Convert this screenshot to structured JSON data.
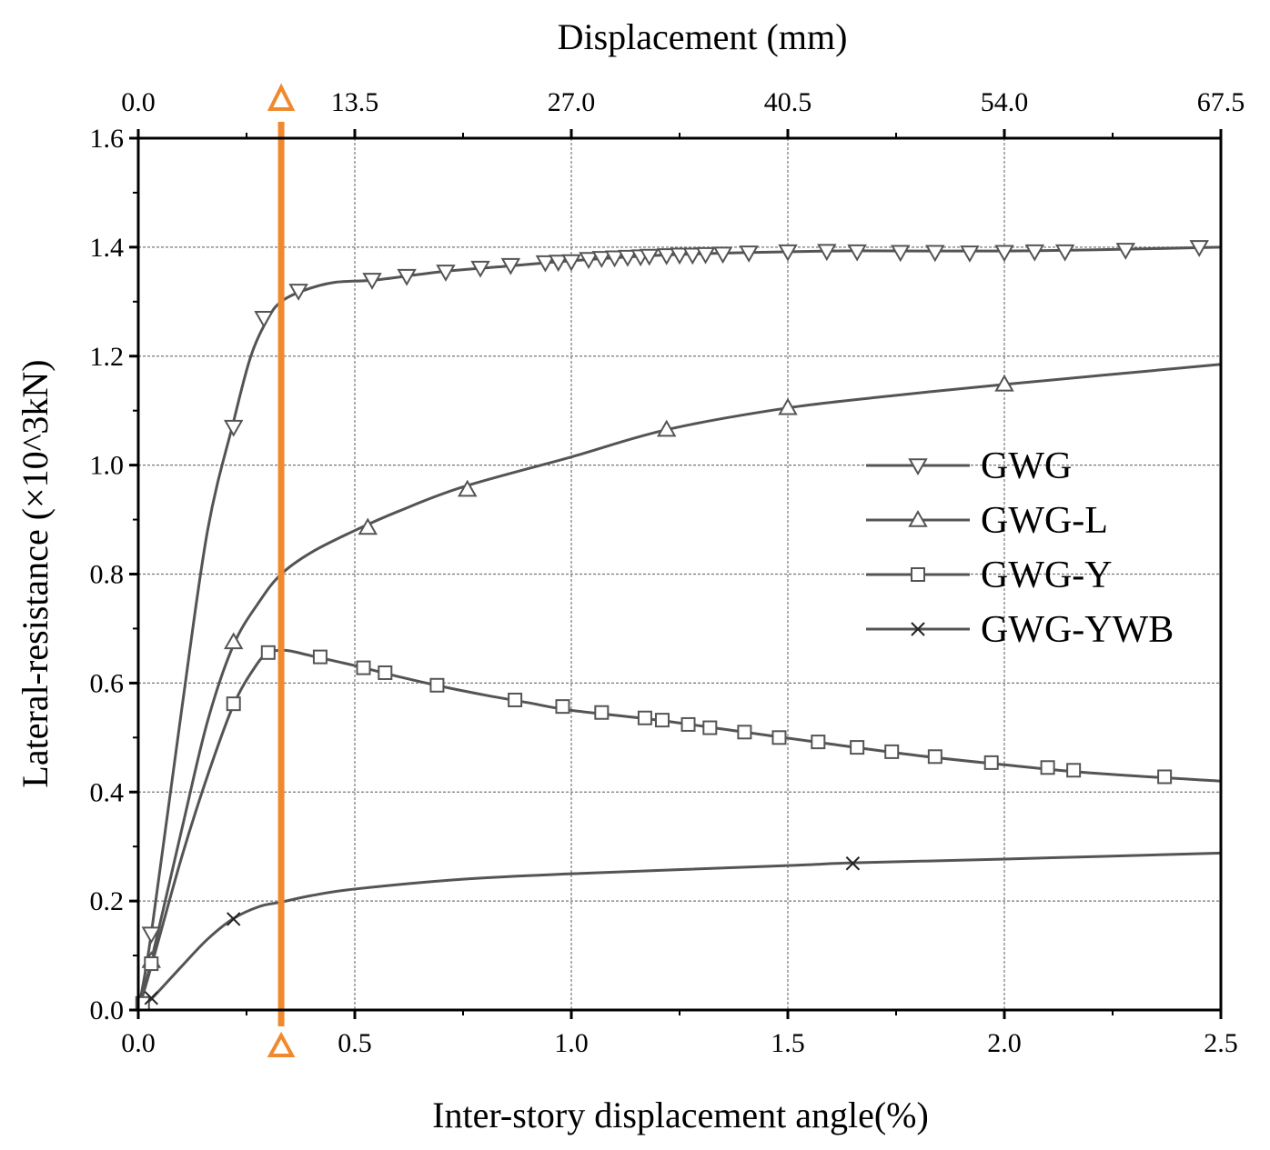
{
  "chart_data": {
    "type": "line",
    "xlabel": "Inter-story displacement angle(%)",
    "ylabel": "Lateral-resistance (×10^3kN)",
    "top_xlabel": "Displacement (mm)",
    "xlim": [
      0,
      2.5
    ],
    "ylim": [
      0,
      1.6
    ],
    "x_ticks": [
      "0.0",
      "0.5",
      "1.0",
      "1.5",
      "2.0",
      "2.5"
    ],
    "y_ticks": [
      "0.0",
      "0.2",
      "0.4",
      "0.6",
      "0.8",
      "1.0",
      "1.2",
      "1.4",
      "1.6"
    ],
    "top_x_ticks": [
      "0.0",
      "13.5",
      "27.0",
      "40.5",
      "54.0",
      "67.5"
    ],
    "grid": true,
    "legend_position": "center-right",
    "vertical_marker": {
      "x": 0.33,
      "color": "#F0892E",
      "marker": "triangle"
    },
    "series": [
      {
        "name": "GWG",
        "marker": "triangle-down",
        "line": [
          [
            0,
            0
          ],
          [
            0.03,
            0.14
          ],
          [
            0.1,
            0.55
          ],
          [
            0.16,
            0.88
          ],
          [
            0.22,
            1.08
          ],
          [
            0.26,
            1.2
          ],
          [
            0.3,
            1.27
          ],
          [
            0.33,
            1.3
          ],
          [
            0.38,
            1.32
          ],
          [
            0.45,
            1.335
          ],
          [
            0.55,
            1.34
          ],
          [
            0.7,
            1.355
          ],
          [
            0.85,
            1.365
          ],
          [
            1.0,
            1.375
          ],
          [
            1.2,
            1.385
          ],
          [
            1.4,
            1.39
          ],
          [
            1.6,
            1.393
          ],
          [
            1.8,
            1.393
          ],
          [
            2.0,
            1.393
          ],
          [
            2.2,
            1.395
          ],
          [
            2.5,
            1.4
          ]
        ],
        "markers": [
          [
            0.03,
            0.14
          ],
          [
            0.22,
            1.07
          ],
          [
            0.29,
            1.27
          ],
          [
            0.37,
            1.32
          ],
          [
            0.54,
            1.34
          ],
          [
            0.62,
            1.347
          ],
          [
            0.71,
            1.355
          ],
          [
            0.79,
            1.362
          ],
          [
            0.86,
            1.367
          ],
          [
            0.94,
            1.372
          ],
          [
            0.97,
            1.373
          ],
          [
            1.0,
            1.374
          ],
          [
            1.04,
            1.378
          ],
          [
            1.07,
            1.38
          ],
          [
            1.1,
            1.381
          ],
          [
            1.13,
            1.382
          ],
          [
            1.16,
            1.383
          ],
          [
            1.18,
            1.384
          ],
          [
            1.22,
            1.385
          ],
          [
            1.25,
            1.386
          ],
          [
            1.28,
            1.386
          ],
          [
            1.31,
            1.387
          ],
          [
            1.35,
            1.388
          ],
          [
            1.41,
            1.39
          ],
          [
            1.5,
            1.392
          ],
          [
            1.59,
            1.393
          ],
          [
            1.66,
            1.392
          ],
          [
            1.76,
            1.391
          ],
          [
            1.84,
            1.391
          ],
          [
            1.92,
            1.39
          ],
          [
            2.0,
            1.391
          ],
          [
            2.07,
            1.392
          ],
          [
            2.14,
            1.392
          ],
          [
            2.28,
            1.395
          ],
          [
            2.45,
            1.4
          ]
        ]
      },
      {
        "name": "GWG-L",
        "marker": "triangle-up",
        "line": [
          [
            0,
            0
          ],
          [
            0.03,
            0.09
          ],
          [
            0.1,
            0.33
          ],
          [
            0.16,
            0.53
          ],
          [
            0.22,
            0.67
          ],
          [
            0.28,
            0.75
          ],
          [
            0.33,
            0.8
          ],
          [
            0.4,
            0.84
          ],
          [
            0.5,
            0.88
          ],
          [
            0.6,
            0.915
          ],
          [
            0.75,
            0.96
          ],
          [
            1.0,
            1.015
          ],
          [
            1.22,
            1.065
          ],
          [
            1.5,
            1.105
          ],
          [
            1.75,
            1.128
          ],
          [
            2.0,
            1.148
          ],
          [
            2.5,
            1.185
          ]
        ],
        "markers": [
          [
            0.03,
            0.09
          ],
          [
            0.22,
            0.675
          ],
          [
            0.53,
            0.885
          ],
          [
            0.76,
            0.955
          ],
          [
            1.22,
            1.065
          ],
          [
            1.5,
            1.105
          ],
          [
            2.0,
            1.148
          ]
        ]
      },
      {
        "name": "GWG-Y",
        "marker": "square",
        "line": [
          [
            0,
            0
          ],
          [
            0.03,
            0.08
          ],
          [
            0.1,
            0.28
          ],
          [
            0.16,
            0.43
          ],
          [
            0.22,
            0.56
          ],
          [
            0.27,
            0.63
          ],
          [
            0.3,
            0.655
          ],
          [
            0.34,
            0.66
          ],
          [
            0.4,
            0.65
          ],
          [
            0.5,
            0.632
          ],
          [
            0.6,
            0.612
          ],
          [
            0.7,
            0.594
          ],
          [
            0.8,
            0.578
          ],
          [
            0.9,
            0.564
          ],
          [
            1.0,
            0.55
          ],
          [
            1.2,
            0.532
          ],
          [
            1.4,
            0.51
          ],
          [
            1.6,
            0.488
          ],
          [
            1.8,
            0.467
          ],
          [
            2.0,
            0.45
          ],
          [
            2.2,
            0.435
          ],
          [
            2.5,
            0.42
          ]
        ],
        "markers": [
          [
            0.01,
            0.012
          ],
          [
            0.03,
            0.085
          ],
          [
            0.22,
            0.562
          ],
          [
            0.3,
            0.656
          ],
          [
            0.42,
            0.648
          ],
          [
            0.52,
            0.628
          ],
          [
            0.57,
            0.619
          ],
          [
            0.69,
            0.596
          ],
          [
            0.87,
            0.569
          ],
          [
            0.98,
            0.557
          ],
          [
            1.07,
            0.546
          ],
          [
            1.17,
            0.536
          ],
          [
            1.21,
            0.532
          ],
          [
            1.27,
            0.524
          ],
          [
            1.32,
            0.518
          ],
          [
            1.4,
            0.51
          ],
          [
            1.48,
            0.5
          ],
          [
            1.57,
            0.492
          ],
          [
            1.66,
            0.482
          ],
          [
            1.74,
            0.474
          ],
          [
            1.84,
            0.465
          ],
          [
            1.97,
            0.454
          ],
          [
            2.1,
            0.445
          ],
          [
            2.16,
            0.44
          ],
          [
            2.37,
            0.428
          ]
        ]
      },
      {
        "name": "GWG-YWB",
        "marker": "x",
        "line": [
          [
            0,
            0
          ],
          [
            0.03,
            0.02
          ],
          [
            0.1,
            0.08
          ],
          [
            0.16,
            0.13
          ],
          [
            0.22,
            0.168
          ],
          [
            0.28,
            0.19
          ],
          [
            0.33,
            0.198
          ],
          [
            0.4,
            0.21
          ],
          [
            0.5,
            0.222
          ],
          [
            0.75,
            0.24
          ],
          [
            1.0,
            0.25
          ],
          [
            1.5,
            0.265
          ],
          [
            1.65,
            0.27
          ],
          [
            2.0,
            0.277
          ],
          [
            2.5,
            0.288
          ]
        ],
        "markers": [
          [
            0.03,
            0.022
          ],
          [
            0.22,
            0.167
          ],
          [
            1.65,
            0.269
          ]
        ]
      }
    ]
  }
}
